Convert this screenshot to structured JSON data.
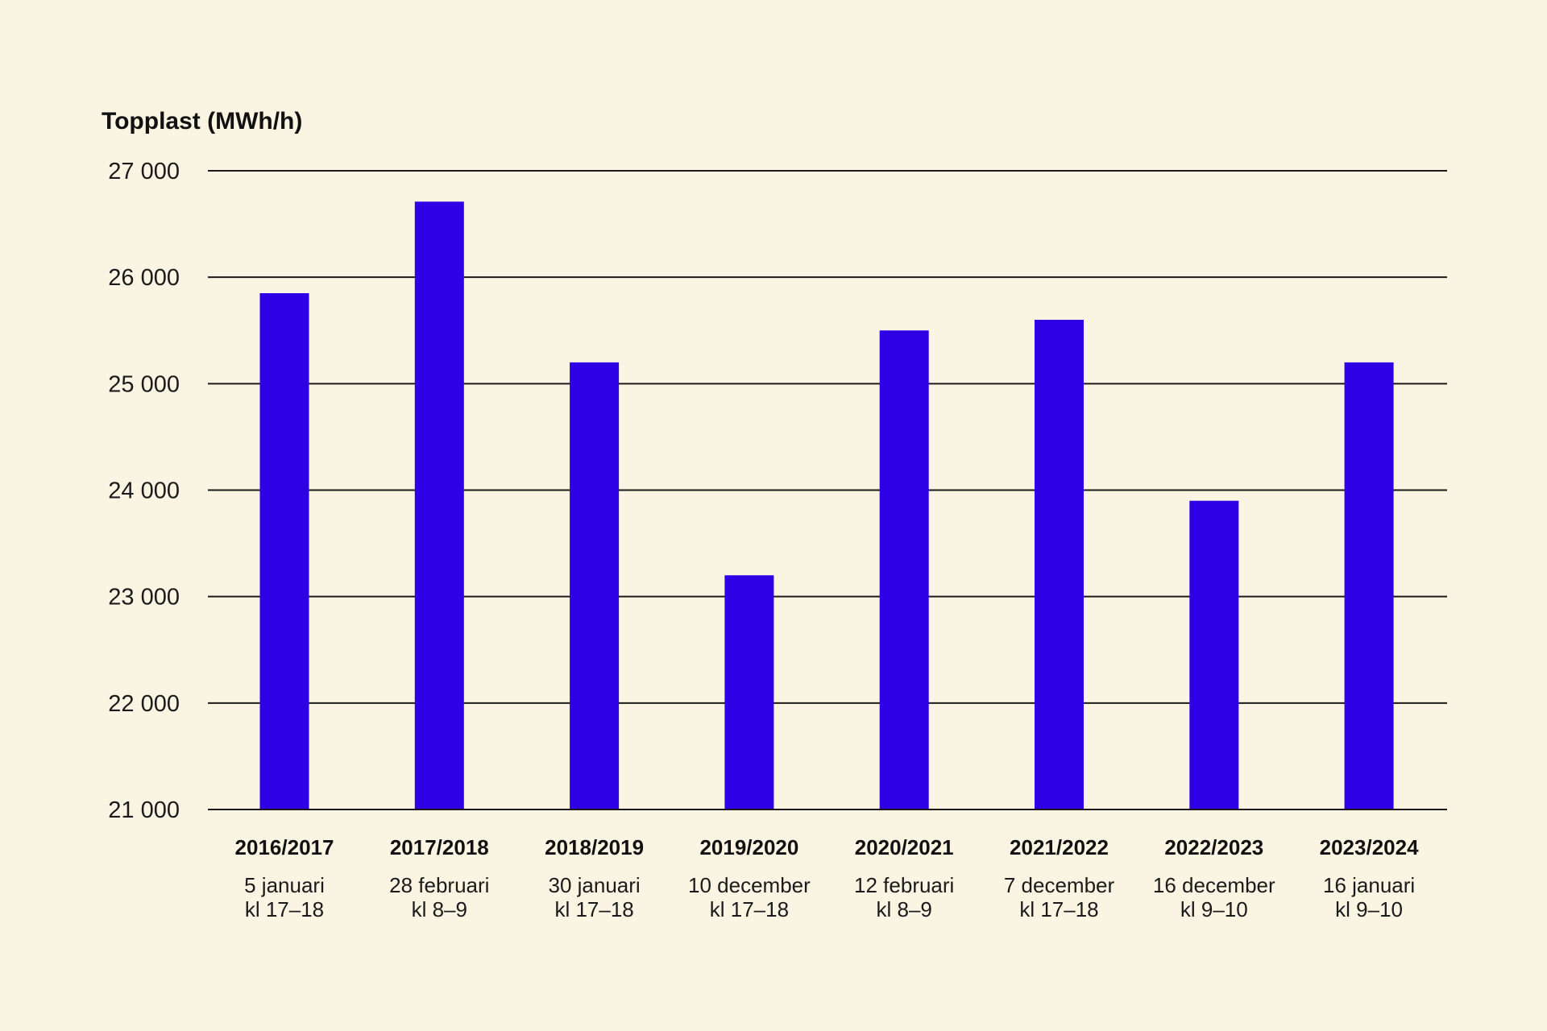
{
  "chart_data": {
    "type": "bar",
    "title": "Topplast (MWh/h)",
    "ylim": [
      21000,
      27000
    ],
    "yticks": [
      {
        "value": 27000,
        "label": "27 000"
      },
      {
        "value": 26000,
        "label": "26 000"
      },
      {
        "value": 25000,
        "label": "25 000"
      },
      {
        "value": 24000,
        "label": "24 000"
      },
      {
        "value": 23000,
        "label": "23 000"
      },
      {
        "value": 22000,
        "label": "22 000"
      },
      {
        "value": 21000,
        "label": "21 000"
      }
    ],
    "grid": true,
    "categories": [
      "2016/2017",
      "2017/2018",
      "2018/2019",
      "2019/2020",
      "2020/2021",
      "2021/2022",
      "2022/2023",
      "2023/2024"
    ],
    "category_dates": [
      "5 januari",
      "28 februari",
      "30 januari",
      "10 december",
      "12 februari",
      "7 december",
      "16 december",
      "16 januari"
    ],
    "category_hours": [
      "kl 17–18",
      "kl 8–9",
      "kl 17–18",
      "kl 17–18",
      "kl 8–9",
      "kl 17–18",
      "kl 9–10",
      "kl 9–10"
    ],
    "values": [
      25850,
      26710,
      25200,
      23200,
      25500,
      25600,
      23900,
      25200
    ],
    "bar_color": "#2e00e6",
    "background_color": "#faf5e3"
  }
}
